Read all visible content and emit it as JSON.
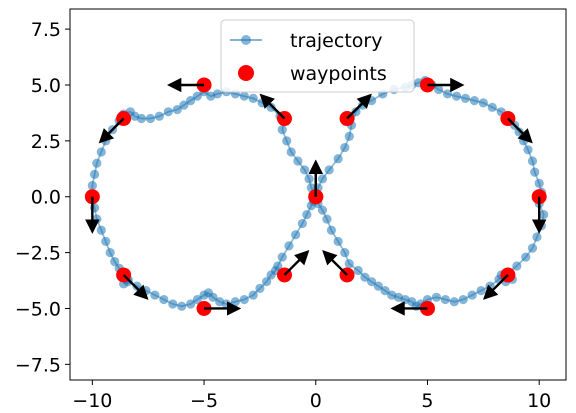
{
  "chart_data": {
    "type": "scatter",
    "title": "",
    "xlabel": "",
    "ylabel": "",
    "xlim": [
      -11,
      11.2
    ],
    "ylim": [
      -8.2,
      8.4
    ],
    "x_ticks": [
      {
        "value": -10,
        "label": "−10"
      },
      {
        "value": -5,
        "label": "−5"
      },
      {
        "value": 0,
        "label": "0"
      },
      {
        "value": 5,
        "label": "5"
      },
      {
        "value": 10,
        "label": "10"
      }
    ],
    "y_ticks": [
      {
        "value": -7.5,
        "label": "−7.5"
      },
      {
        "value": -5.0,
        "label": "−5.0"
      },
      {
        "value": -2.5,
        "label": "−2.5"
      },
      {
        "value": 0.0,
        "label": "0.0"
      },
      {
        "value": 2.5,
        "label": "2.5"
      },
      {
        "value": 5.0,
        "label": "5.0"
      },
      {
        "value": 7.5,
        "label": "7.5"
      }
    ],
    "legend": {
      "placement": "upper-center"
    },
    "series": [
      {
        "name": "trajectory",
        "kind": "line-markers",
        "color": "#1f77b4",
        "x": [
          0.0,
          0.1,
          0.3,
          0.6,
          1.0,
          1.3,
          1.5,
          1.6,
          1.8,
          2.1,
          2.5,
          3.0,
          3.5,
          4.0,
          4.3,
          4.6,
          4.9,
          5.2,
          5.5,
          5.9,
          6.3,
          6.7,
          7.1,
          7.5,
          7.9,
          8.3,
          8.6,
          8.9,
          9.1,
          9.3,
          9.5,
          9.7,
          9.8,
          10.0,
          10.1,
          10.0,
          10.2,
          10.1,
          9.9,
          9.7,
          9.4,
          9.0,
          8.6,
          8.3,
          8.5,
          8.8,
          8.6,
          8.2,
          7.8,
          7.4,
          7.0,
          6.6,
          6.2,
          5.8,
          5.4,
          5.0,
          4.7,
          4.5,
          4.3,
          4.0,
          3.7,
          3.4,
          3.1,
          2.8,
          2.5,
          2.2,
          1.9,
          1.5,
          1.3,
          1.0,
          0.7,
          0.5,
          0.3,
          0.1,
          0.0,
          -0.2,
          -0.3,
          -0.5,
          -0.8,
          -1.1,
          -1.3,
          -1.5,
          -1.4,
          -1.6,
          -2.0,
          -2.4,
          -2.8,
          -3.2,
          -3.6,
          -4.0,
          -4.4,
          -4.7,
          -5.0,
          -5.3,
          -5.6,
          -5.9,
          -6.2,
          -6.6,
          -7.0,
          -7.4,
          -7.8,
          -8.1,
          -8.3,
          -8.6,
          -8.8,
          -9.1,
          -9.4,
          -9.6,
          -9.8,
          -9.9,
          -10.0,
          -10.0,
          -9.9,
          -9.8,
          -9.6,
          -9.4,
          -9.2,
          -9.0,
          -8.8,
          -8.6,
          -8.4,
          -8.6,
          -8.4,
          -8.0,
          -7.6,
          -7.2,
          -6.8,
          -6.4,
          -6.0,
          -5.6,
          -5.3,
          -5.0,
          -4.8,
          -4.6,
          -4.3,
          -4.0,
          -3.6,
          -3.2,
          -2.8,
          -2.5,
          -2.2,
          -2.0,
          -1.8,
          -1.7,
          -1.5,
          -1.2,
          -0.9,
          -0.6,
          -0.4,
          -0.2,
          -0.1,
          0.0
        ],
        "y": [
          0.0,
          0.4,
          0.8,
          1.2,
          1.7,
          2.2,
          2.7,
          3.2,
          3.8,
          4.1,
          4.3,
          4.6,
          4.8,
          4.9,
          5.0,
          5.1,
          5.2,
          5.0,
          4.8,
          4.6,
          4.5,
          4.4,
          4.3,
          4.2,
          4.0,
          3.8,
          3.5,
          3.2,
          2.9,
          2.5,
          2.1,
          1.6,
          1.1,
          0.6,
          0.2,
          -0.3,
          -0.8,
          -1.3,
          -1.8,
          -2.3,
          -2.7,
          -3.1,
          -3.4,
          -3.5,
          -3.8,
          -3.7,
          -3.4,
          -3.7,
          -4.0,
          -4.2,
          -4.4,
          -4.6,
          -4.7,
          -4.6,
          -4.5,
          -4.6,
          -4.8,
          -4.9,
          -4.7,
          -4.6,
          -4.5,
          -4.4,
          -4.2,
          -4.0,
          -3.8,
          -3.6,
          -3.3,
          -3.0,
          -2.5,
          -2.0,
          -1.5,
          -1.0,
          -0.6,
          -0.3,
          0.0,
          0.4,
          0.8,
          1.2,
          1.6,
          2.0,
          2.5,
          3.0,
          3.4,
          3.6,
          4.0,
          4.2,
          4.4,
          4.5,
          4.6,
          4.7,
          4.6,
          4.5,
          4.7,
          4.5,
          4.3,
          4.1,
          3.9,
          3.8,
          3.6,
          3.5,
          3.5,
          3.6,
          3.8,
          3.7,
          3.4,
          3.0,
          2.5,
          2.0,
          1.5,
          1.0,
          0.5,
          0.0,
          -0.5,
          -1.0,
          -1.5,
          -2.0,
          -2.5,
          -2.9,
          -3.2,
          -3.5,
          -3.7,
          -3.9,
          -3.8,
          -4.0,
          -4.2,
          -4.4,
          -4.6,
          -4.8,
          -4.9,
          -4.8,
          -4.6,
          -4.4,
          -4.3,
          -4.5,
          -4.7,
          -4.8,
          -4.7,
          -4.6,
          -4.4,
          -4.1,
          -3.8,
          -3.5,
          -3.3,
          -3.1,
          -2.7,
          -2.2,
          -1.7,
          -1.2,
          -0.8,
          -0.4,
          -0.2,
          0.0
        ]
      },
      {
        "name": "waypoints",
        "kind": "markers",
        "color": "#ff0000",
        "x": [
          -10,
          -8.6,
          -5,
          -1.4,
          0,
          1.4,
          5,
          8.6,
          10,
          8.6,
          5,
          1.4,
          0,
          -1.4,
          -5,
          -8.6
        ],
        "y": [
          0,
          3.5,
          5,
          3.5,
          0,
          3.5,
          5,
          3.5,
          0,
          -3.5,
          -5,
          -3.5,
          0,
          -3.5,
          -5,
          -3.5
        ]
      }
    ],
    "waypoint_headings": [
      {
        "x": -10,
        "y": 0,
        "dx": 0,
        "dy": -1.5
      },
      {
        "x": -8.6,
        "y": 3.5,
        "dx": -1.0,
        "dy": -1.0
      },
      {
        "x": -5,
        "y": 5,
        "dx": -1.5,
        "dy": 0
      },
      {
        "x": -1.4,
        "y": 3.5,
        "dx": -1.0,
        "dy": 1.0
      },
      {
        "x": 0,
        "y": 0,
        "dx": 0,
        "dy": 1.5
      },
      {
        "x": 1.4,
        "y": 3.5,
        "dx": 1.0,
        "dy": 1.0
      },
      {
        "x": 5,
        "y": 5,
        "dx": 1.5,
        "dy": 0
      },
      {
        "x": 8.6,
        "y": 3.5,
        "dx": 1.0,
        "dy": -1.0
      },
      {
        "x": 10,
        "y": 0,
        "dx": 0,
        "dy": -1.5
      },
      {
        "x": 8.6,
        "y": -3.5,
        "dx": -1.0,
        "dy": -1.0
      },
      {
        "x": 5,
        "y": -5,
        "dx": -1.5,
        "dy": 0
      },
      {
        "x": 1.4,
        "y": -3.5,
        "dx": -1.0,
        "dy": 1.0
      },
      {
        "x": 0,
        "y": 0,
        "dx": 0,
        "dy": 0
      },
      {
        "x": -1.4,
        "y": -3.5,
        "dx": 1.0,
        "dy": 1.0
      },
      {
        "x": -5,
        "y": -5,
        "dx": 1.5,
        "dy": 0
      },
      {
        "x": -8.6,
        "y": -3.5,
        "dx": 1.0,
        "dy": -1.0
      }
    ]
  }
}
